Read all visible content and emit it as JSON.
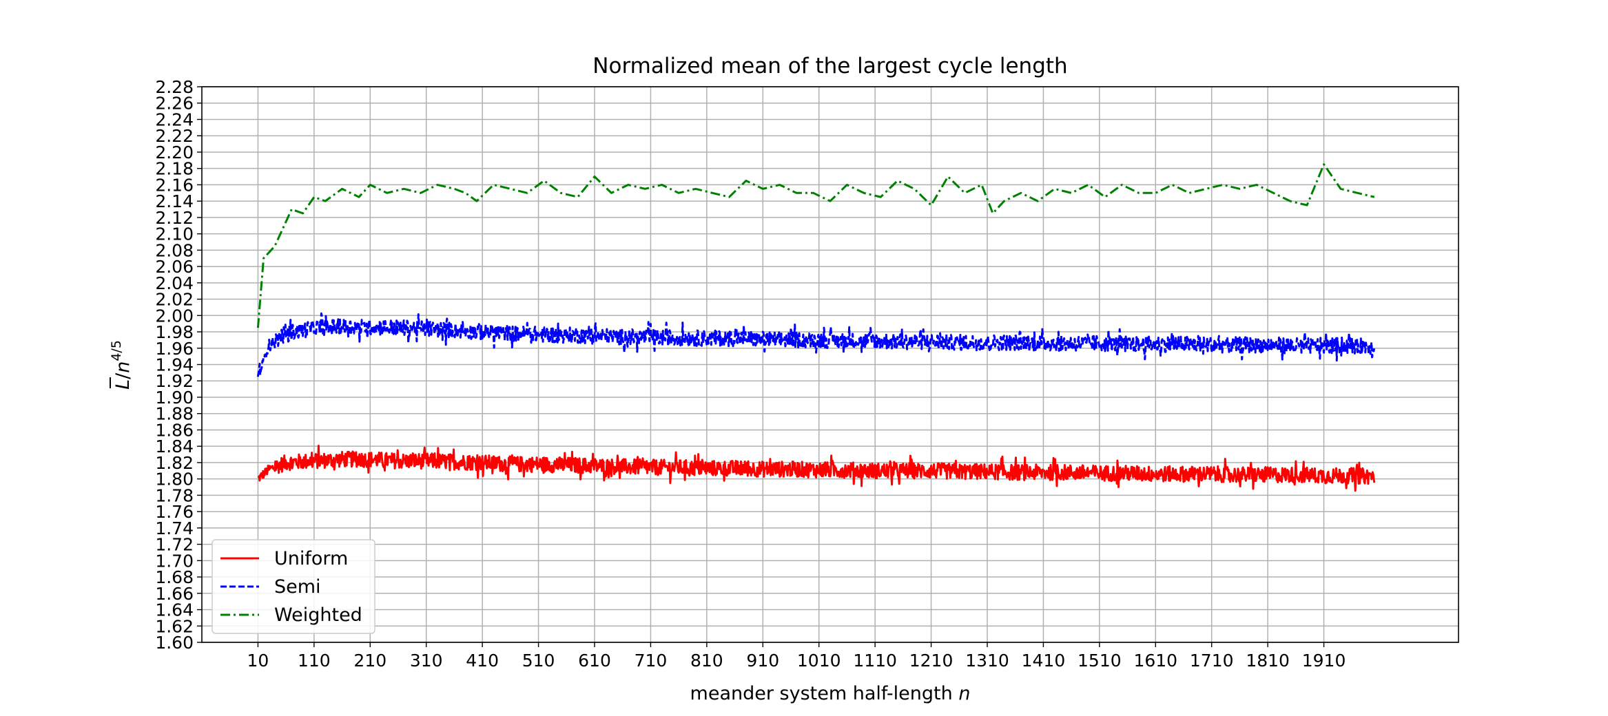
{
  "chart_data": {
    "type": "line",
    "title": "Normalized mean of the largest cycle length",
    "xlabel": "meander system half-length n",
    "xlabel_parts": [
      "meander system half-length ",
      "n"
    ],
    "ylabel": "L/n^{4/5}",
    "ylabel_parts": [
      "L",
      "/",
      "n",
      "4/5"
    ],
    "xlim": [
      -90,
      2150
    ],
    "ylim": [
      1.6,
      2.28
    ],
    "x_ticks": [
      10,
      110,
      210,
      310,
      410,
      510,
      610,
      710,
      810,
      910,
      1010,
      1110,
      1210,
      1310,
      1410,
      1510,
      1610,
      1710,
      1810,
      1910
    ],
    "x_tick_labels": [
      "10",
      "110",
      "210",
      "310",
      "410",
      "510",
      "610",
      "710",
      "810",
      "910",
      "1010",
      "1110",
      "1210",
      "1310",
      "1410",
      "1510",
      "1610",
      "1710",
      "1810",
      "1910"
    ],
    "y_ticks": [
      1.6,
      1.62,
      1.64,
      1.66,
      1.68,
      1.7,
      1.72,
      1.74,
      1.76,
      1.78,
      1.8,
      1.82,
      1.84,
      1.86,
      1.88,
      1.9,
      1.92,
      1.94,
      1.96,
      1.98,
      2.0,
      2.02,
      2.04,
      2.06,
      2.08,
      2.1,
      2.12,
      2.14,
      2.16,
      2.18,
      2.2,
      2.22,
      2.24,
      2.26,
      2.28
    ],
    "y_tick_labels": [
      "1.60",
      "1.62",
      "1.64",
      "1.66",
      "1.68",
      "1.70",
      "1.72",
      "1.74",
      "1.76",
      "1.78",
      "1.80",
      "1.82",
      "1.84",
      "1.86",
      "1.88",
      "1.90",
      "1.92",
      "1.94",
      "1.96",
      "1.98",
      "2.00",
      "2.02",
      "2.04",
      "2.06",
      "2.08",
      "2.10",
      "2.12",
      "2.14",
      "2.16",
      "2.18",
      "2.20",
      "2.22",
      "2.24",
      "2.26",
      "2.28"
    ],
    "grid": true,
    "legend_position": "bottom-left",
    "series": [
      {
        "name": "Uniform",
        "color": "#ff0000",
        "linestyle": "solid",
        "x": [
          10,
          30,
          60,
          110,
          160,
          210,
          260,
          310,
          360,
          410,
          460,
          510,
          560,
          610,
          660,
          710,
          760,
          810,
          860,
          910,
          960,
          1010,
          1060,
          1110,
          1160,
          1210,
          1260,
          1310,
          1360,
          1410,
          1460,
          1510,
          1560,
          1610,
          1660,
          1710,
          1760,
          1810,
          1860,
          1910,
          1960,
          2000
        ],
        "y": [
          1.8,
          1.812,
          1.82,
          1.822,
          1.824,
          1.824,
          1.822,
          1.822,
          1.821,
          1.82,
          1.818,
          1.818,
          1.817,
          1.816,
          1.815,
          1.814,
          1.814,
          1.813,
          1.813,
          1.812,
          1.812,
          1.811,
          1.811,
          1.81,
          1.81,
          1.81,
          1.809,
          1.809,
          1.808,
          1.808,
          1.808,
          1.807,
          1.807,
          1.806,
          1.806,
          1.806,
          1.805,
          1.805,
          1.805,
          1.804,
          1.804,
          1.803
        ],
        "noise_amplitude": 0.012
      },
      {
        "name": "Semi",
        "color": "#0000ff",
        "linestyle": "dashed",
        "x": [
          10,
          30,
          60,
          110,
          160,
          210,
          260,
          310,
          360,
          410,
          460,
          510,
          560,
          610,
          660,
          710,
          760,
          810,
          860,
          910,
          960,
          1010,
          1060,
          1110,
          1160,
          1210,
          1260,
          1310,
          1360,
          1410,
          1460,
          1510,
          1560,
          1610,
          1660,
          1710,
          1760,
          1810,
          1860,
          1910,
          1960,
          2000
        ],
        "y": [
          1.925,
          1.965,
          1.978,
          1.985,
          1.986,
          1.986,
          1.985,
          1.984,
          1.982,
          1.98,
          1.978,
          1.977,
          1.976,
          1.975,
          1.974,
          1.973,
          1.973,
          1.972,
          1.972,
          1.971,
          1.97,
          1.97,
          1.969,
          1.969,
          1.968,
          1.968,
          1.967,
          1.967,
          1.967,
          1.966,
          1.966,
          1.966,
          1.965,
          1.965,
          1.965,
          1.964,
          1.964,
          1.964,
          1.963,
          1.963,
          1.963,
          1.962
        ],
        "noise_amplitude": 0.012
      },
      {
        "name": "Weighted",
        "color": "#008000",
        "linestyle": "dashdot",
        "x": [
          10,
          20,
          40,
          70,
          90,
          110,
          130,
          160,
          190,
          210,
          240,
          270,
          300,
          330,
          360,
          380,
          400,
          430,
          460,
          490,
          520,
          550,
          580,
          610,
          640,
          670,
          700,
          730,
          760,
          790,
          820,
          850,
          880,
          910,
          940,
          970,
          1000,
          1030,
          1060,
          1090,
          1120,
          1150,
          1180,
          1210,
          1240,
          1270,
          1300,
          1320,
          1340,
          1370,
          1400,
          1430,
          1460,
          1490,
          1520,
          1550,
          1580,
          1610,
          1640,
          1670,
          1700,
          1730,
          1760,
          1790,
          1820,
          1850,
          1880,
          1910,
          1940,
          1970,
          2000
        ],
        "y": [
          1.985,
          2.07,
          2.085,
          2.13,
          2.125,
          2.145,
          2.14,
          2.155,
          2.145,
          2.16,
          2.15,
          2.155,
          2.15,
          2.16,
          2.155,
          2.15,
          2.14,
          2.16,
          2.155,
          2.15,
          2.165,
          2.15,
          2.145,
          2.17,
          2.15,
          2.16,
          2.155,
          2.16,
          2.15,
          2.155,
          2.15,
          2.145,
          2.165,
          2.155,
          2.16,
          2.15,
          2.15,
          2.14,
          2.16,
          2.15,
          2.145,
          2.165,
          2.155,
          2.135,
          2.17,
          2.15,
          2.16,
          2.125,
          2.14,
          2.15,
          2.14,
          2.155,
          2.15,
          2.16,
          2.145,
          2.16,
          2.15,
          2.15,
          2.16,
          2.15,
          2.155,
          2.16,
          2.155,
          2.16,
          2.15,
          2.14,
          2.135,
          2.185,
          2.155,
          2.15,
          2.145
        ],
        "noise_amplitude": 0.01
      }
    ]
  }
}
